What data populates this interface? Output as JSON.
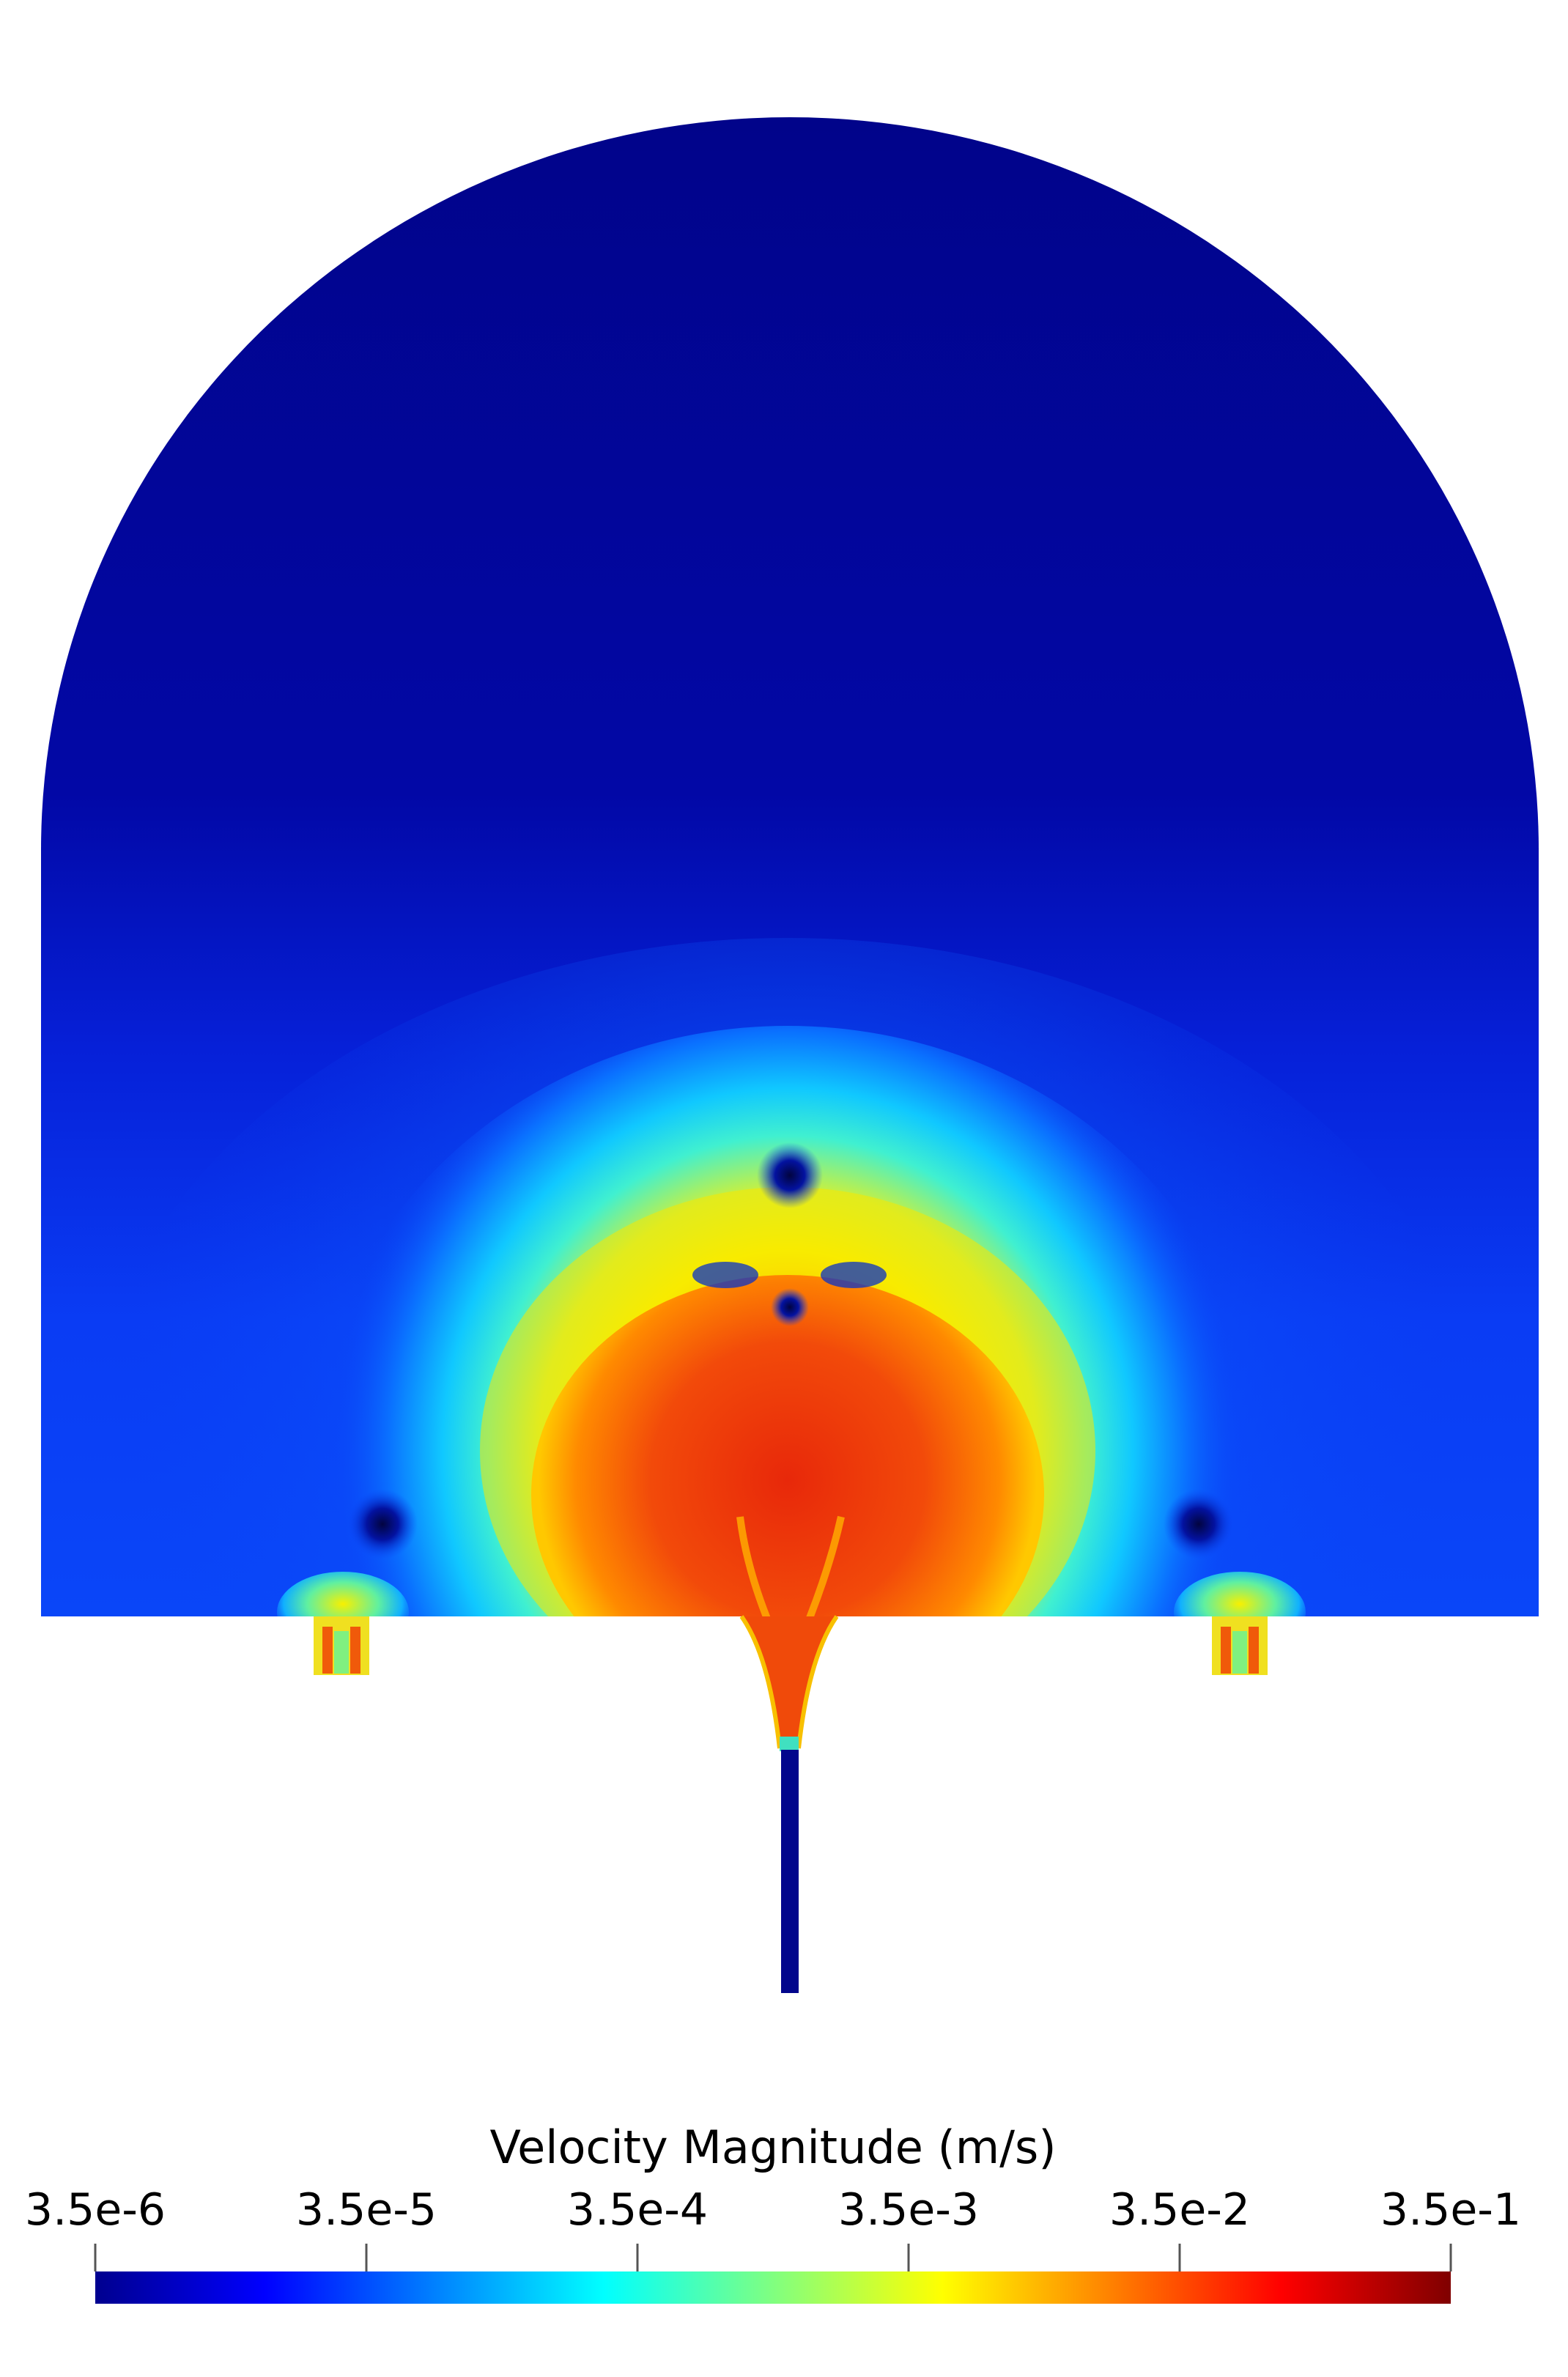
{
  "legend": {
    "title": "Velocity Magnitude (m/s)",
    "ticks": [
      "3.5e-6",
      "3.5e-5",
      "3.5e-4",
      "3.5e-3",
      "3.5e-2",
      "3.5e-1"
    ],
    "colormap": [
      "#00008f",
      "#0000ff",
      "#0080ff",
      "#00ffff",
      "#80ff80",
      "#ffff00",
      "#ff8000",
      "#ff0000",
      "#800000"
    ]
  },
  "colors": {
    "background": "#ffffff",
    "field_low": "#02058e",
    "field_mid": "#0f5cff",
    "field_cyan": "#1ee6e6",
    "field_yellow": "#f5f00a",
    "field_orange": "#f56a0a",
    "field_red": "#e8300a"
  }
}
